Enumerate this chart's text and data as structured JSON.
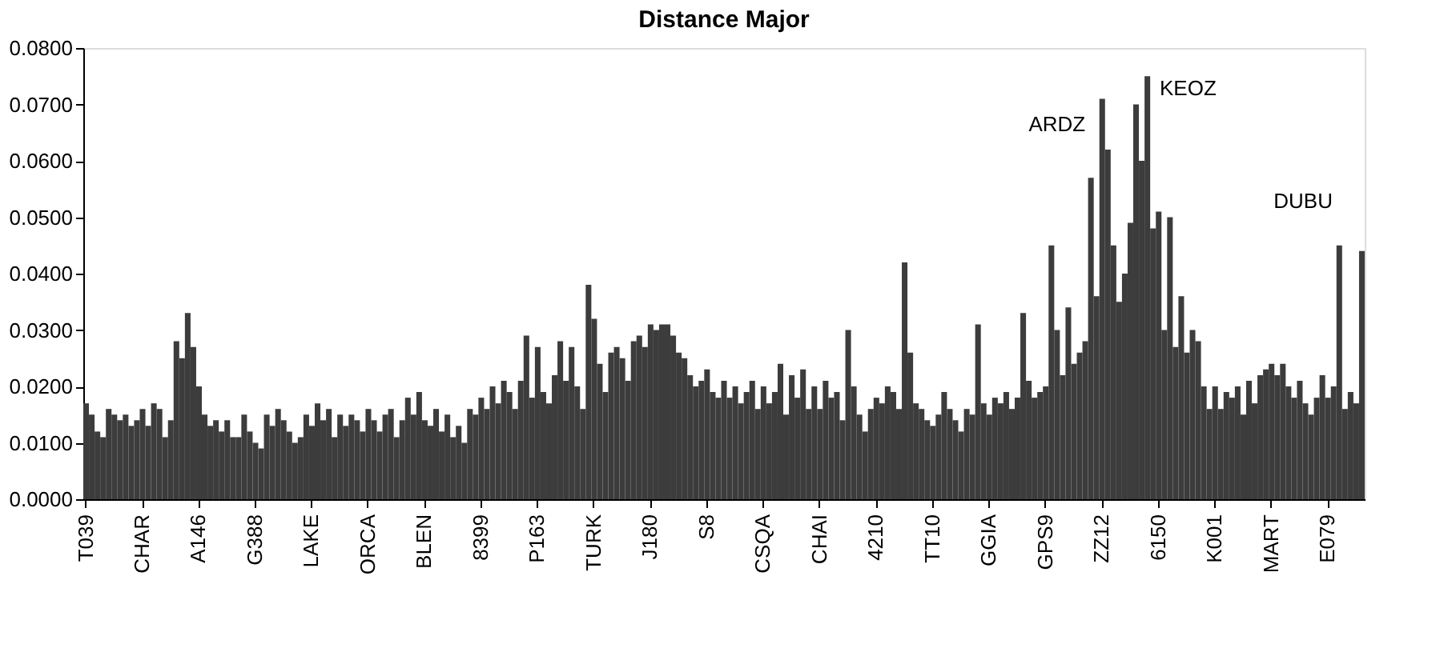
{
  "chart_data": {
    "type": "bar",
    "title": "Distance Major",
    "categories": [
      "T039",
      null,
      null,
      null,
      null,
      null,
      null,
      null,
      null,
      null,
      "CHAR",
      null,
      null,
      null,
      null,
      null,
      null,
      null,
      null,
      null,
      "A146",
      null,
      null,
      null,
      null,
      null,
      null,
      null,
      null,
      null,
      "G388",
      null,
      null,
      null,
      null,
      null,
      null,
      null,
      null,
      null,
      "LAKE",
      null,
      null,
      null,
      null,
      null,
      null,
      null,
      null,
      null,
      "ORCA",
      null,
      null,
      null,
      null,
      null,
      null,
      null,
      null,
      null,
      "BLEN",
      null,
      null,
      null,
      null,
      null,
      null,
      null,
      null,
      null,
      "8399",
      null,
      null,
      null,
      null,
      null,
      null,
      null,
      null,
      null,
      "P163",
      null,
      null,
      null,
      null,
      null,
      null,
      null,
      null,
      null,
      "TURK",
      null,
      null,
      null,
      null,
      null,
      null,
      null,
      null,
      null,
      "J180",
      null,
      null,
      null,
      null,
      null,
      null,
      null,
      null,
      null,
      "S8",
      null,
      null,
      null,
      null,
      null,
      null,
      null,
      null,
      null,
      "CSQA",
      null,
      null,
      null,
      null,
      null,
      null,
      null,
      null,
      null,
      "CHAI",
      null,
      null,
      null,
      null,
      null,
      null,
      null,
      null,
      null,
      "4210",
      null,
      null,
      null,
      null,
      null,
      null,
      null,
      null,
      null,
      "TT10",
      null,
      null,
      null,
      null,
      null,
      null,
      null,
      null,
      null,
      "GGIA",
      null,
      null,
      null,
      null,
      null,
      null,
      null,
      null,
      null,
      "GPS9",
      null,
      null,
      null,
      null,
      null,
      null,
      null,
      null,
      null,
      "ZZ12",
      null,
      null,
      null,
      null,
      null,
      null,
      null,
      null,
      null,
      "6150",
      null,
      null,
      null,
      null,
      null,
      null,
      null,
      null,
      null,
      "K001",
      null,
      null,
      null,
      null,
      null,
      null,
      null,
      null,
      null,
      "MART",
      null,
      null,
      null,
      null,
      null,
      null,
      null,
      null,
      null,
      "E079",
      null,
      null,
      null,
      null,
      null,
      null
    ],
    "values": [
      0.017,
      0.015,
      0.012,
      0.011,
      0.016,
      0.015,
      0.014,
      0.015,
      0.013,
      0.014,
      0.016,
      0.013,
      0.017,
      0.016,
      0.011,
      0.014,
      0.028,
      0.025,
      0.033,
      0.027,
      0.02,
      0.015,
      0.013,
      0.014,
      0.012,
      0.014,
      0.011,
      0.011,
      0.015,
      0.012,
      0.01,
      0.009,
      0.015,
      0.013,
      0.016,
      0.014,
      0.012,
      0.01,
      0.011,
      0.015,
      0.013,
      0.017,
      0.014,
      0.016,
      0.011,
      0.015,
      0.013,
      0.015,
      0.014,
      0.012,
      0.016,
      0.014,
      0.012,
      0.015,
      0.016,
      0.011,
      0.014,
      0.018,
      0.015,
      0.019,
      0.014,
      0.013,
      0.016,
      0.012,
      0.015,
      0.011,
      0.013,
      0.01,
      0.016,
      0.015,
      0.018,
      0.016,
      0.02,
      0.017,
      0.021,
      0.019,
      0.016,
      0.021,
      0.029,
      0.018,
      0.027,
      0.019,
      0.017,
      0.022,
      0.028,
      0.021,
      0.027,
      0.02,
      0.016,
      0.038,
      0.032,
      0.024,
      0.019,
      0.026,
      0.027,
      0.025,
      0.021,
      0.028,
      0.029,
      0.027,
      0.031,
      0.03,
      0.031,
      0.031,
      0.029,
      0.026,
      0.025,
      0.022,
      0.02,
      0.021,
      0.023,
      0.019,
      0.018,
      0.021,
      0.018,
      0.02,
      0.017,
      0.019,
      0.021,
      0.016,
      0.02,
      0.017,
      0.019,
      0.024,
      0.015,
      0.022,
      0.018,
      0.023,
      0.016,
      0.02,
      0.016,
      0.021,
      0.018,
      0.019,
      0.014,
      0.03,
      0.02,
      0.015,
      0.012,
      0.016,
      0.018,
      0.017,
      0.02,
      0.019,
      0.016,
      0.042,
      0.026,
      0.017,
      0.016,
      0.014,
      0.013,
      0.015,
      0.019,
      0.016,
      0.014,
      0.012,
      0.016,
      0.015,
      0.031,
      0.017,
      0.015,
      0.018,
      0.017,
      0.019,
      0.016,
      0.018,
      0.033,
      0.021,
      0.018,
      0.019,
      0.02,
      0.045,
      0.03,
      0.022,
      0.034,
      0.024,
      0.026,
      0.028,
      0.057,
      0.036,
      0.071,
      0.062,
      0.045,
      0.035,
      0.04,
      0.049,
      0.07,
      0.06,
      0.075,
      0.048,
      0.051,
      0.03,
      0.05,
      0.027,
      0.036,
      0.026,
      0.03,
      0.028,
      0.02,
      0.016,
      0.02,
      0.016,
      0.019,
      0.018,
      0.02,
      0.015,
      0.021,
      0.017,
      0.022,
      0.023,
      0.024,
      0.022,
      0.024,
      0.02,
      0.018,
      0.021,
      0.017,
      0.015,
      0.018,
      0.022,
      0.018,
      0.02,
      0.045,
      0.016,
      0.019,
      0.017,
      0.044
    ],
    "color": "#3c3c3c",
    "ylim": [
      0,
      0.08
    ],
    "yticks": [
      {
        "value": 0,
        "label": "0.0000"
      },
      {
        "value": 0.01,
        "label": "0.0100"
      },
      {
        "value": 0.02,
        "label": "0.0200"
      },
      {
        "value": 0.03,
        "label": "0.0300"
      },
      {
        "value": 0.04,
        "label": "0.0400"
      },
      {
        "value": 0.05,
        "label": "0.0500"
      },
      {
        "value": 0.06,
        "label": "0.0600"
      },
      {
        "value": 0.07,
        "label": "0.0700"
      },
      {
        "value": 0.08,
        "label": "0.0800"
      }
    ],
    "annotations": [
      "ARDZ",
      "KEOZ",
      "DUBU"
    ],
    "grid": false
  }
}
